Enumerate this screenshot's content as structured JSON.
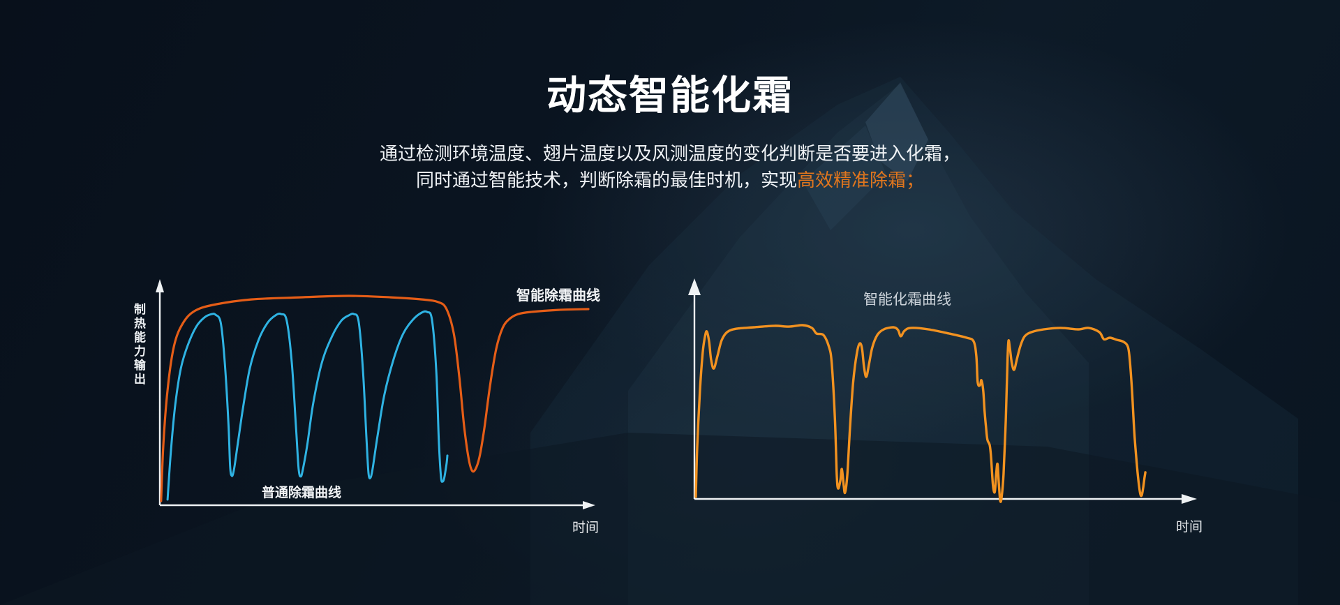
{
  "header": {
    "title": "动态智能化霜",
    "subtitle_line1": "通过检测环境温度、翅片温度以及风测温度的变化判断是否要进入化霜，",
    "subtitle_line2_prefix": "同时通过智能技术，判断除霜的最佳时机，实现",
    "subtitle_line2_highlight": "高效精准除霜；",
    "highlight_color": "#e0761e"
  },
  "colors": {
    "background_dark": "#0a1420",
    "axis": "#eff2f4",
    "accent_orange": "#e0761e"
  },
  "chart_data": [
    {
      "type": "line",
      "title": "",
      "xlabel": "时间",
      "ylabel": "制热能力输出",
      "grid": false,
      "axes_numeric": false,
      "legend_position": "inline-annotations",
      "series": [
        {
          "name": "智能除霜曲线",
          "color": "#e55d17",
          "points": [
            [
              0.3,
              2
            ],
            [
              0.8,
              28
            ],
            [
              1.8,
              55
            ],
            [
              3.3,
              76
            ],
            [
              5.4,
              87
            ],
            [
              8.3,
              93
            ],
            [
              13.2,
              96
            ],
            [
              21.3,
              98.3
            ],
            [
              32.7,
              99.3
            ],
            [
              44.1,
              100
            ],
            [
              53.9,
              99.3
            ],
            [
              61.2,
              98.3
            ],
            [
              65,
              97
            ],
            [
              66.9,
              93.7
            ],
            [
              68.6,
              82
            ],
            [
              69.9,
              61
            ],
            [
              71,
              38
            ],
            [
              72,
              23
            ],
            [
              72.8,
              16.7
            ],
            [
              73.6,
              17
            ],
            [
              74.6,
              23
            ],
            [
              75.7,
              36.3
            ],
            [
              77,
              56.3
            ],
            [
              78.5,
              74.7
            ],
            [
              80,
              84.7
            ],
            [
              81.6,
              89
            ],
            [
              83.6,
              91.3
            ],
            [
              86.5,
              92.3
            ],
            [
              93,
              93.3
            ],
            [
              100,
              93.7
            ]
          ]
        },
        {
          "name": "普通除霜曲线",
          "color": "#2fb3e3",
          "points": [
            [
              1.8,
              2.7
            ],
            [
              2.6,
              26.3
            ],
            [
              3.6,
              48
            ],
            [
              4.9,
              65.3
            ],
            [
              6.5,
              76.3
            ],
            [
              8.5,
              85.3
            ],
            [
              10.4,
              89.7
            ],
            [
              12.1,
              91.3
            ],
            [
              13,
              91
            ],
            [
              14.2,
              87.3
            ],
            [
              15.1,
              69.7
            ],
            [
              16,
              39.7
            ],
            [
              16.4,
              18.7
            ],
            [
              16.8,
              14
            ],
            [
              17.3,
              17
            ],
            [
              18.1,
              28
            ],
            [
              19.4,
              46.3
            ],
            [
              21,
              65.3
            ],
            [
              23,
              78.7
            ],
            [
              25.1,
              87
            ],
            [
              27,
              90.7
            ],
            [
              28.3,
              91.3
            ],
            [
              29.6,
              88.3
            ],
            [
              30.8,
              68
            ],
            [
              31.8,
              36.3
            ],
            [
              32.4,
              17.3
            ],
            [
              32.9,
              13.7
            ],
            [
              33.4,
              17.3
            ],
            [
              34.4,
              28.7
            ],
            [
              35.8,
              48.7
            ],
            [
              37.8,
              68
            ],
            [
              40.1,
              80.3
            ],
            [
              42.3,
              88
            ],
            [
              44.1,
              90.7
            ],
            [
              45.3,
              91.3
            ],
            [
              46.4,
              87.7
            ],
            [
              47.4,
              64.7
            ],
            [
              48.2,
              33
            ],
            [
              48.7,
              15.3
            ],
            [
              49.2,
              13.3
            ],
            [
              49.7,
              18
            ],
            [
              50.8,
              33
            ],
            [
              52.4,
              52.7
            ],
            [
              54.6,
              70
            ],
            [
              56.8,
              82
            ],
            [
              59.1,
              88.7
            ],
            [
              61.1,
              92
            ],
            [
              62.4,
              92.3
            ],
            [
              63.5,
              88.7
            ],
            [
              64.5,
              64.7
            ],
            [
              65.1,
              31.3
            ],
            [
              65.6,
              13.7
            ],
            [
              66,
              11.3
            ],
            [
              66.4,
              13.3
            ],
            [
              66.9,
              19.7
            ],
            [
              67.1,
              23.7
            ]
          ]
        }
      ]
    },
    {
      "type": "line",
      "title": "智能化霜曲线",
      "xlabel": "时间",
      "ylabel": "",
      "grid": false,
      "axes_numeric": false,
      "series": [
        {
          "name": "智能化霜曲线",
          "color": "#f29220",
          "points": [
            [
              0.3,
              1
            ],
            [
              0.6,
              25
            ],
            [
              1.2,
              51.7
            ],
            [
              1.8,
              70
            ],
            [
              2.3,
              77.7
            ],
            [
              2.7,
              80
            ],
            [
              3.2,
              75
            ],
            [
              3.6,
              66.7
            ],
            [
              4.2,
              62.3
            ],
            [
              5,
              68.3
            ],
            [
              5.9,
              75.7
            ],
            [
              7.1,
              79.7
            ],
            [
              9.1,
              81.3
            ],
            [
              12.9,
              82
            ],
            [
              17.4,
              82.7
            ],
            [
              20.5,
              82.3
            ],
            [
              23.5,
              83
            ],
            [
              25.5,
              81.7
            ],
            [
              26.5,
              79
            ],
            [
              28,
              78.3
            ],
            [
              29.2,
              72.7
            ],
            [
              29.8,
              65
            ],
            [
              30.5,
              38.3
            ],
            [
              30.9,
              11.7
            ],
            [
              31.2,
              5
            ],
            [
              31.7,
              9
            ],
            [
              32,
              14.3
            ],
            [
              32.4,
              6.7
            ],
            [
              32.7,
              3
            ],
            [
              33.2,
              11.7
            ],
            [
              33.8,
              35
            ],
            [
              34.5,
              56.7
            ],
            [
              35.3,
              70
            ],
            [
              35.9,
              74.3
            ],
            [
              36.4,
              71.7
            ],
            [
              36.8,
              63.3
            ],
            [
              37.3,
              58.3
            ],
            [
              37.9,
              64.3
            ],
            [
              38.6,
              72.3
            ],
            [
              39.7,
              78.3
            ],
            [
              41.1,
              81
            ],
            [
              43.2,
              82
            ],
            [
              44.2,
              80.7
            ],
            [
              44.8,
              77.7
            ],
            [
              45.6,
              80.3
            ],
            [
              47,
              81.7
            ],
            [
              50.8,
              81
            ],
            [
              55.3,
              79
            ],
            [
              59.1,
              77
            ],
            [
              60.6,
              75.3
            ],
            [
              61.2,
              68.3
            ],
            [
              61.5,
              55.7
            ],
            [
              62,
              54.3
            ],
            [
              62.3,
              56.7
            ],
            [
              62.7,
              51.7
            ],
            [
              63,
              41.7
            ],
            [
              63.3,
              34.3
            ],
            [
              63.6,
              28.3
            ],
            [
              64.1,
              25.7
            ],
            [
              64.4,
              20
            ],
            [
              64.8,
              6.7
            ],
            [
              65.2,
              3.3
            ],
            [
              65.5,
              11.7
            ],
            [
              65.8,
              16.7
            ],
            [
              66.1,
              6.7
            ],
            [
              66.4,
              -1
            ],
            [
              66.7,
              1
            ],
            [
              67.1,
              11.7
            ],
            [
              67.6,
              38.3
            ],
            [
              68,
              68.3
            ],
            [
              68.2,
              75.7
            ],
            [
              68.5,
              71.7
            ],
            [
              68.9,
              65
            ],
            [
              69.4,
              61.7
            ],
            [
              70,
              66.7
            ],
            [
              70.8,
              73.3
            ],
            [
              71.7,
              77.7
            ],
            [
              73.2,
              79.7
            ],
            [
              75.8,
              81
            ],
            [
              79.5,
              81.7
            ],
            [
              83.3,
              81
            ],
            [
              85.6,
              81.7
            ],
            [
              87.9,
              79.7
            ],
            [
              88.9,
              76.3
            ],
            [
              90.2,
              77
            ],
            [
              91.7,
              76
            ],
            [
              93.2,
              75
            ],
            [
              94.1,
              72.7
            ],
            [
              94.5,
              66.7
            ],
            [
              95,
              51.7
            ],
            [
              95.5,
              31.7
            ],
            [
              96.1,
              15
            ],
            [
              96.5,
              6.7
            ],
            [
              96.8,
              2.3
            ],
            [
              97.1,
              1.7
            ],
            [
              97.4,
              5
            ],
            [
              97.7,
              10
            ],
            [
              97.9,
              12.7
            ]
          ]
        }
      ]
    }
  ]
}
